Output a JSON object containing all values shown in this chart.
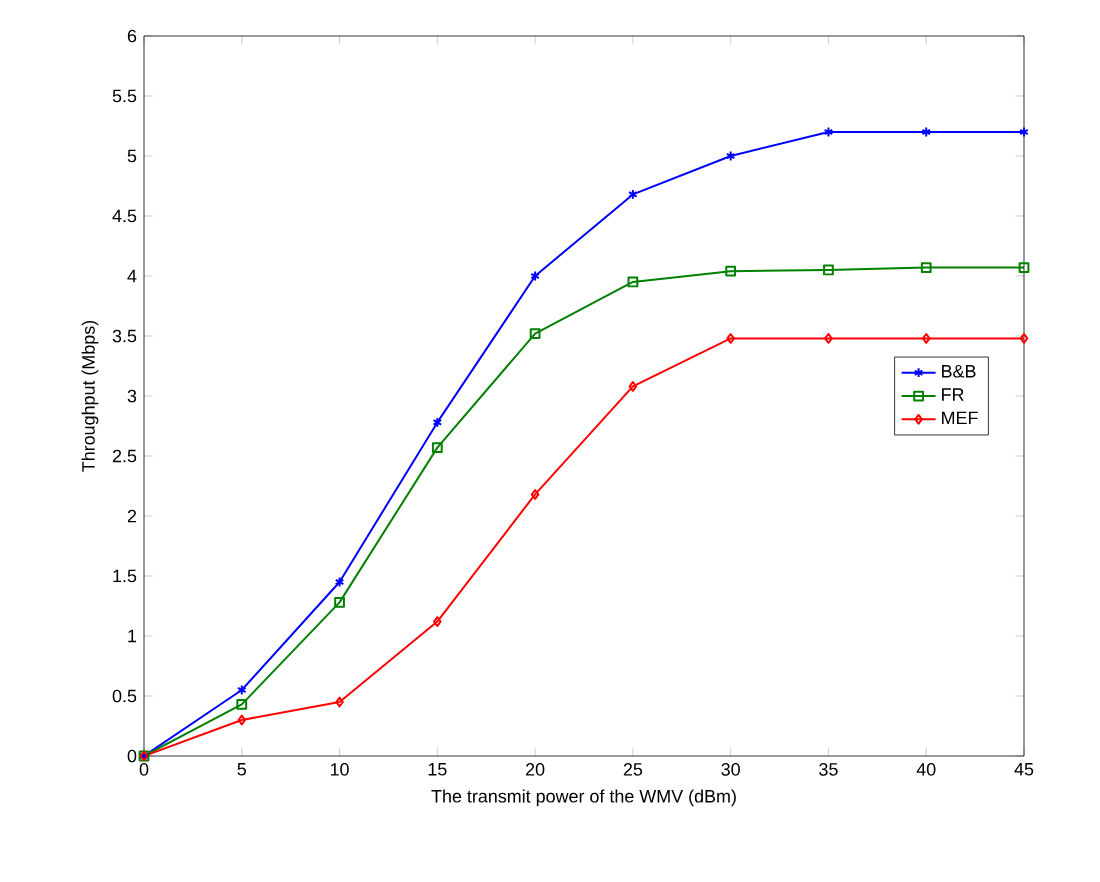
{
  "chart_data": {
    "type": "line",
    "xlabel": "The transmit power of the WMV (dBm)",
    "ylabel": "Throughput (Mbps)",
    "x": [
      0,
      5,
      10,
      15,
      20,
      25,
      30,
      35,
      40,
      45
    ],
    "series": [
      {
        "name": "B&B",
        "color": "#0000ff",
        "marker": "cross",
        "values": [
          0,
          0.55,
          1.45,
          2.78,
          4.0,
          4.68,
          5.0,
          5.2,
          5.2,
          5.2
        ]
      },
      {
        "name": "FR",
        "color": "#008000",
        "marker": "square",
        "values": [
          0,
          0.43,
          1.28,
          2.57,
          3.52,
          3.95,
          4.04,
          4.05,
          4.07,
          4.07
        ]
      },
      {
        "name": "MEF",
        "color": "#ff0000",
        "marker": "diamond",
        "values": [
          0,
          0.3,
          0.45,
          1.12,
          2.18,
          3.08,
          3.48,
          3.48,
          3.48,
          3.48
        ]
      }
    ],
    "xlim": [
      0,
      45
    ],
    "xticks": [
      0,
      5,
      10,
      15,
      20,
      25,
      30,
      35,
      40,
      45
    ],
    "ylim": [
      0,
      6
    ],
    "yticks": [
      0,
      0.5,
      1,
      1.5,
      2,
      2.5,
      3,
      3.5,
      4,
      4.5,
      5,
      5.5,
      6
    ],
    "grid": false,
    "legend": "right",
    "line_style": "solid"
  }
}
